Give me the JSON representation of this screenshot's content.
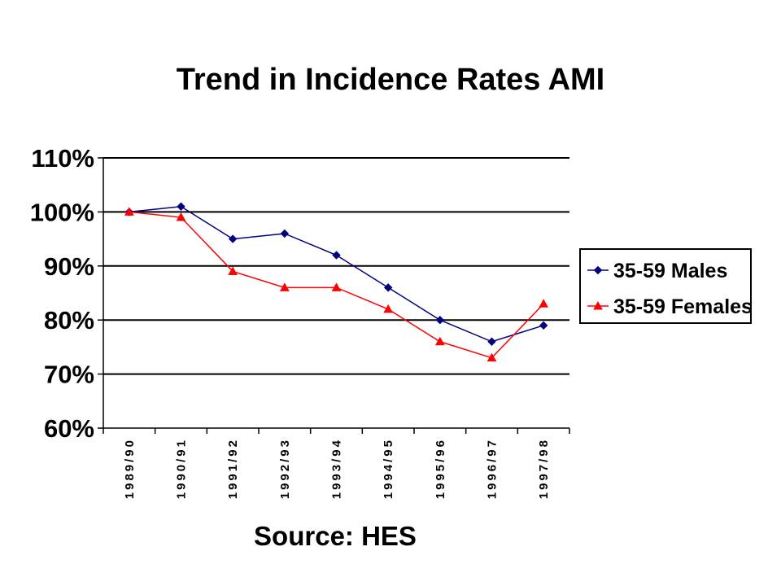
{
  "chart_data": {
    "type": "line",
    "title": "Trend in Incidence Rates AMI",
    "xlabel": "",
    "ylabel": "",
    "categories": [
      "1989/90",
      "1990/91",
      "1991/92",
      "1992/93",
      "1993/94",
      "1994/95",
      "1995/96",
      "1996/97",
      "1997/98"
    ],
    "ylim": [
      60,
      110
    ],
    "y_ticks": [
      "110%",
      "100%",
      "90%",
      "80%",
      "70%",
      "60%"
    ],
    "y_tick_values": [
      110,
      100,
      90,
      80,
      70,
      60
    ],
    "grid": true,
    "legend_position": "right",
    "series": [
      {
        "name": "35-59 Males",
        "values": [
          100,
          101,
          95,
          96,
          92,
          86,
          80,
          76,
          79
        ],
        "color": "#000080",
        "marker": "diamond"
      },
      {
        "name": "35-59 Females",
        "values": [
          100,
          99,
          89,
          86,
          86,
          82,
          76,
          73,
          83
        ],
        "color": "#ff0000",
        "marker": "triangle"
      }
    ]
  },
  "source": "Source: HES"
}
